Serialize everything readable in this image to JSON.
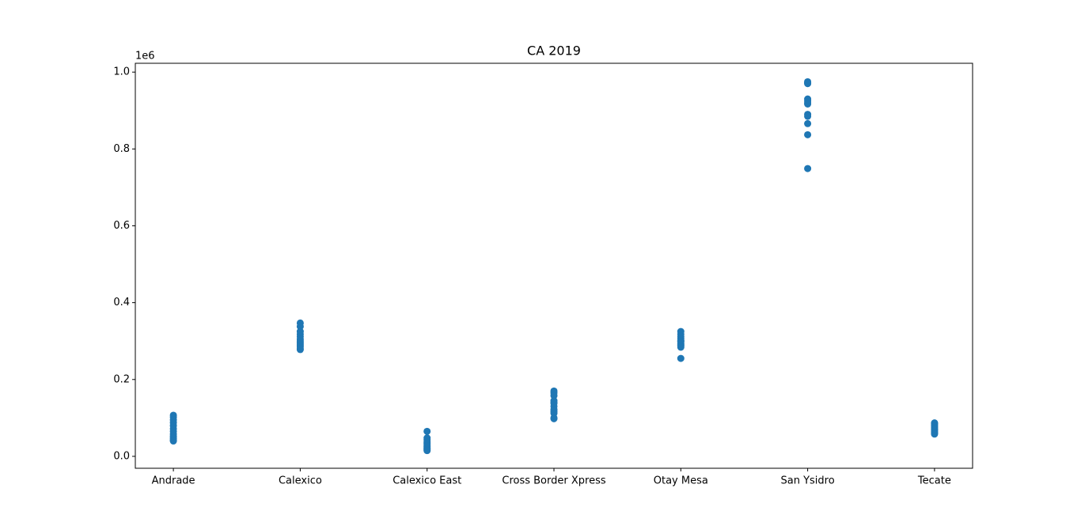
{
  "chart_data": {
    "type": "scatter",
    "title": "CA 2019",
    "y_offset_label": "1e6",
    "categories": [
      "Andrade",
      "Calexico",
      "Calexico East",
      "Cross Border Xpress",
      "Otay Mesa",
      "San Ysidro",
      "Tecate"
    ],
    "color": "#1f77b4",
    "values": [
      [
        0.107,
        0.102,
        0.095,
        0.088,
        0.08,
        0.072,
        0.065,
        0.058,
        0.052,
        0.047,
        0.042,
        0.04
      ],
      [
        0.347,
        0.338,
        0.325,
        0.318,
        0.312,
        0.305,
        0.3,
        0.295,
        0.29,
        0.285,
        0.28,
        0.278
      ],
      [
        0.065,
        0.048,
        0.043,
        0.038,
        0.035,
        0.032,
        0.028,
        0.025,
        0.022,
        0.02,
        0.017,
        0.015
      ],
      [
        0.17,
        0.165,
        0.158,
        0.145,
        0.14,
        0.138,
        0.13,
        0.122,
        0.117,
        0.112,
        0.1,
        0.098
      ],
      [
        0.325,
        0.318,
        0.312,
        0.307,
        0.302,
        0.3,
        0.298,
        0.293,
        0.29,
        0.287,
        0.284,
        0.255
      ],
      [
        0.975,
        0.972,
        0.97,
        0.93,
        0.925,
        0.92,
        0.917,
        0.89,
        0.885,
        0.866,
        0.837,
        0.749
      ],
      [
        0.087,
        0.085,
        0.082,
        0.078,
        0.075,
        0.072,
        0.07,
        0.068,
        0.065,
        0.062,
        0.06,
        0.058
      ]
    ],
    "ylim": [
      -0.031,
      1.023
    ],
    "yticks": [
      {
        "value": 0,
        "label": "0.0"
      },
      0.2,
      0.4,
      0.6,
      0.8,
      {
        "value": 1,
        "label": "1.0"
      }
    ]
  }
}
